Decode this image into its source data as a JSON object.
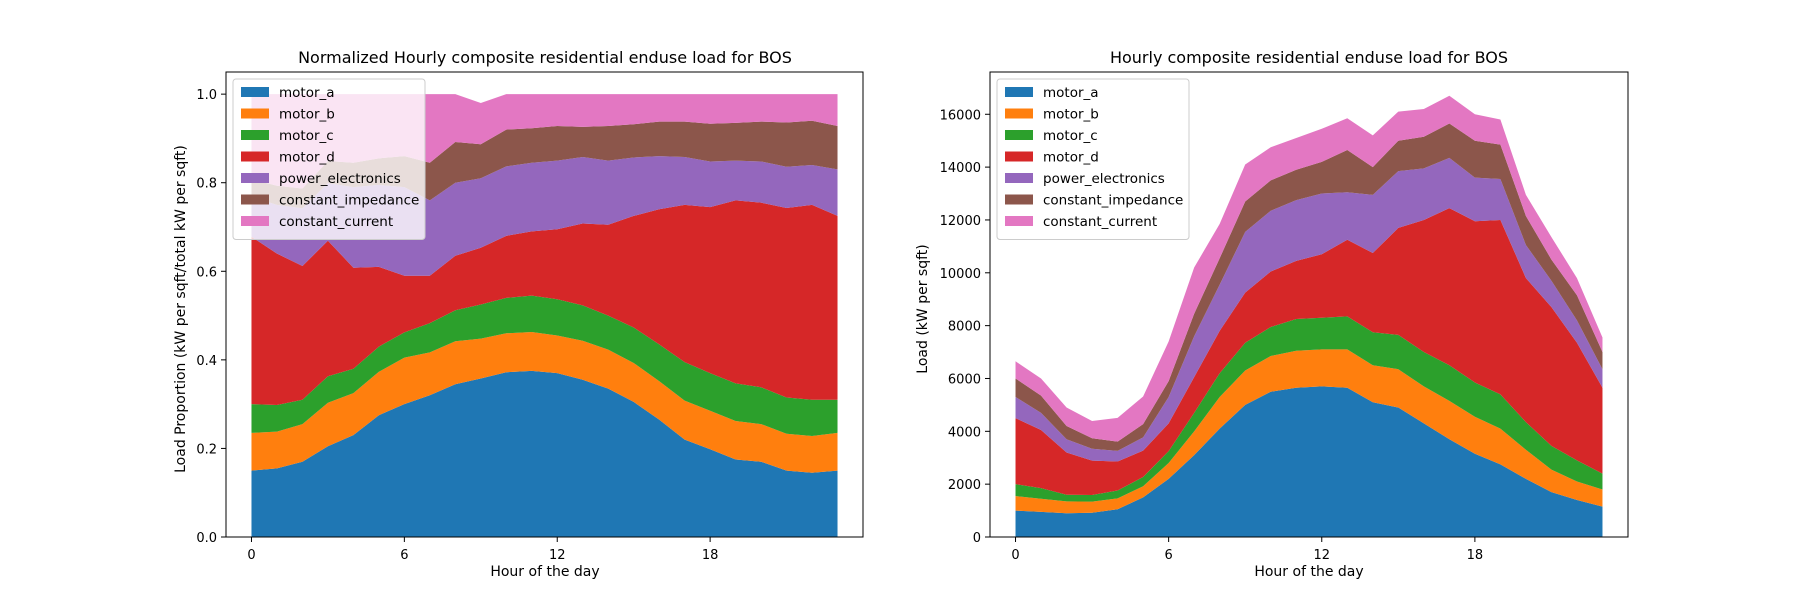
{
  "chart_data": [
    {
      "type": "area",
      "stacked": true,
      "title": "Normalized Hourly composite residential enduse load for BOS",
      "xlabel": "Hour of the day",
      "ylabel": "Load Proportion (kW per sqft/total kW per sqft)",
      "xlim": [
        -1,
        24
      ],
      "ylim": [
        0,
        1.05
      ],
      "xticks": [
        0,
        6,
        12,
        18
      ],
      "yticks": [
        0.0,
        0.2,
        0.4,
        0.6,
        0.8,
        1.0
      ],
      "ytick_labels": [
        "0.0",
        "0.2",
        "0.4",
        "0.6",
        "0.8",
        "1.0"
      ],
      "legend": "upper-left",
      "x": [
        0,
        1,
        2,
        3,
        4,
        5,
        6,
        7,
        8,
        9,
        10,
        11,
        12,
        13,
        14,
        15,
        16,
        17,
        18,
        19,
        20,
        21,
        22,
        23
      ],
      "series": [
        {
          "name": "motor_a",
          "color": "#1f77b4",
          "values": [
            0.15,
            0.155,
            0.17,
            0.205,
            0.23,
            0.275,
            0.3,
            0.32,
            0.345,
            0.358,
            0.372,
            0.375,
            0.37,
            0.355,
            0.335,
            0.305,
            0.265,
            0.22,
            0.198,
            0.175,
            0.17,
            0.15,
            0.145,
            0.15
          ]
        },
        {
          "name": "motor_b",
          "color": "#ff7f0e",
          "values": [
            0.085,
            0.083,
            0.085,
            0.098,
            0.095,
            0.098,
            0.105,
            0.097,
            0.097,
            0.09,
            0.088,
            0.088,
            0.085,
            0.088,
            0.088,
            0.088,
            0.087,
            0.088,
            0.087,
            0.087,
            0.085,
            0.083,
            0.083,
            0.085
          ]
        },
        {
          "name": "motor_c",
          "color": "#2ca02c",
          "values": [
            0.065,
            0.06,
            0.055,
            0.06,
            0.055,
            0.057,
            0.057,
            0.066,
            0.07,
            0.077,
            0.08,
            0.082,
            0.082,
            0.08,
            0.077,
            0.08,
            0.083,
            0.087,
            0.085,
            0.085,
            0.083,
            0.082,
            0.082,
            0.075
          ]
        },
        {
          "name": "motor_d",
          "color": "#d62728",
          "values": [
            0.378,
            0.342,
            0.302,
            0.306,
            0.228,
            0.18,
            0.128,
            0.107,
            0.123,
            0.128,
            0.14,
            0.145,
            0.158,
            0.185,
            0.205,
            0.252,
            0.305,
            0.355,
            0.375,
            0.413,
            0.417,
            0.428,
            0.44,
            0.415
          ]
        },
        {
          "name": "power_electronics",
          "color": "#9467bd",
          "values": [
            0.09,
            0.11,
            0.13,
            0.13,
            0.182,
            0.185,
            0.2,
            0.17,
            0.165,
            0.157,
            0.157,
            0.155,
            0.155,
            0.15,
            0.145,
            0.132,
            0.12,
            0.108,
            0.103,
            0.09,
            0.093,
            0.093,
            0.09,
            0.105
          ]
        },
        {
          "name": "constant_impedance",
          "color": "#8c564b",
          "values": [
            0.04,
            0.043,
            0.045,
            0.05,
            0.055,
            0.06,
            0.07,
            0.085,
            0.092,
            0.077,
            0.083,
            0.078,
            0.078,
            0.068,
            0.078,
            0.075,
            0.078,
            0.08,
            0.085,
            0.085,
            0.09,
            0.1,
            0.1,
            0.098
          ]
        },
        {
          "name": "constant_current",
          "color": "#e377c2",
          "values": [
            0.192,
            0.207,
            0.213,
            0.151,
            0.155,
            0.145,
            0.14,
            0.155,
            0.108,
            0.093,
            0.08,
            0.077,
            0.072,
            0.074,
            0.072,
            0.068,
            0.062,
            0.062,
            0.067,
            0.065,
            0.062,
            0.064,
            0.06,
            0.072
          ]
        }
      ]
    },
    {
      "type": "area",
      "stacked": true,
      "title": "Hourly composite residential enduse load for BOS",
      "xlabel": "Hour of the day",
      "ylabel": "Load (kW per sqft)",
      "xlim": [
        -1,
        24
      ],
      "ylim": [
        0,
        17600
      ],
      "xticks": [
        0,
        6,
        12,
        18
      ],
      "yticks": [
        0,
        2000,
        4000,
        6000,
        8000,
        10000,
        12000,
        14000,
        16000
      ],
      "ytick_labels": [
        "0",
        "2000",
        "4000",
        "6000",
        "8000",
        "10000",
        "12000",
        "14000",
        "16000"
      ],
      "legend": "upper-left",
      "x": [
        0,
        1,
        2,
        3,
        4,
        5,
        6,
        7,
        8,
        9,
        10,
        11,
        12,
        13,
        14,
        15,
        16,
        17,
        18,
        19,
        20,
        21,
        22,
        23
      ],
      "series": [
        {
          "name": "motor_a",
          "color": "#1f77b4",
          "values": [
            1000,
            950,
            900,
            920,
            1050,
            1500,
            2200,
            3100,
            4100,
            5000,
            5500,
            5650,
            5700,
            5650,
            5100,
            4900,
            4300,
            3700,
            3150,
            2750,
            2200,
            1700,
            1400,
            1150
          ]
        },
        {
          "name": "motor_b",
          "color": "#ff7f0e",
          "values": [
            550,
            500,
            450,
            420,
            410,
            420,
            600,
            900,
            1200,
            1300,
            1350,
            1400,
            1400,
            1450,
            1400,
            1450,
            1400,
            1450,
            1400,
            1350,
            1100,
            850,
            700,
            650
          ]
        },
        {
          "name": "motor_c",
          "color": "#2ca02c",
          "values": [
            450,
            400,
            250,
            250,
            300,
            350,
            450,
            700,
            900,
            1050,
            1100,
            1200,
            1200,
            1250,
            1250,
            1300,
            1300,
            1350,
            1300,
            1300,
            1050,
            900,
            800,
            600
          ]
        },
        {
          "name": "motor_d",
          "color": "#d62728",
          "values": [
            2500,
            2200,
            1600,
            1300,
            1100,
            1000,
            1050,
            1350,
            1600,
            1900,
            2100,
            2200,
            2400,
            2900,
            3000,
            4050,
            5000,
            5950,
            6100,
            6600,
            5450,
            5250,
            4450,
            3250
          ]
        },
        {
          "name": "power_electronics",
          "color": "#9467bd",
          "values": [
            800,
            650,
            500,
            450,
            400,
            500,
            1000,
            1550,
            1750,
            2300,
            2300,
            2300,
            2300,
            1800,
            2200,
            2150,
            1950,
            1900,
            1650,
            1550,
            1250,
            1000,
            850,
            700
          ]
        },
        {
          "name": "constant_impedance",
          "color": "#8c564b",
          "values": [
            700,
            650,
            500,
            400,
            350,
            500,
            600,
            850,
            1000,
            1150,
            1150,
            1150,
            1200,
            1600,
            1050,
            1150,
            1200,
            1300,
            1400,
            1300,
            1100,
            800,
            950,
            650
          ]
        },
        {
          "name": "constant_current",
          "color": "#e377c2",
          "values": [
            650,
            650,
            700,
            650,
            900,
            1050,
            1500,
            1750,
            1300,
            1400,
            1250,
            1200,
            1250,
            1200,
            1200,
            1100,
            1050,
            1050,
            1000,
            950,
            800,
            850,
            650,
            550
          ]
        }
      ]
    }
  ]
}
